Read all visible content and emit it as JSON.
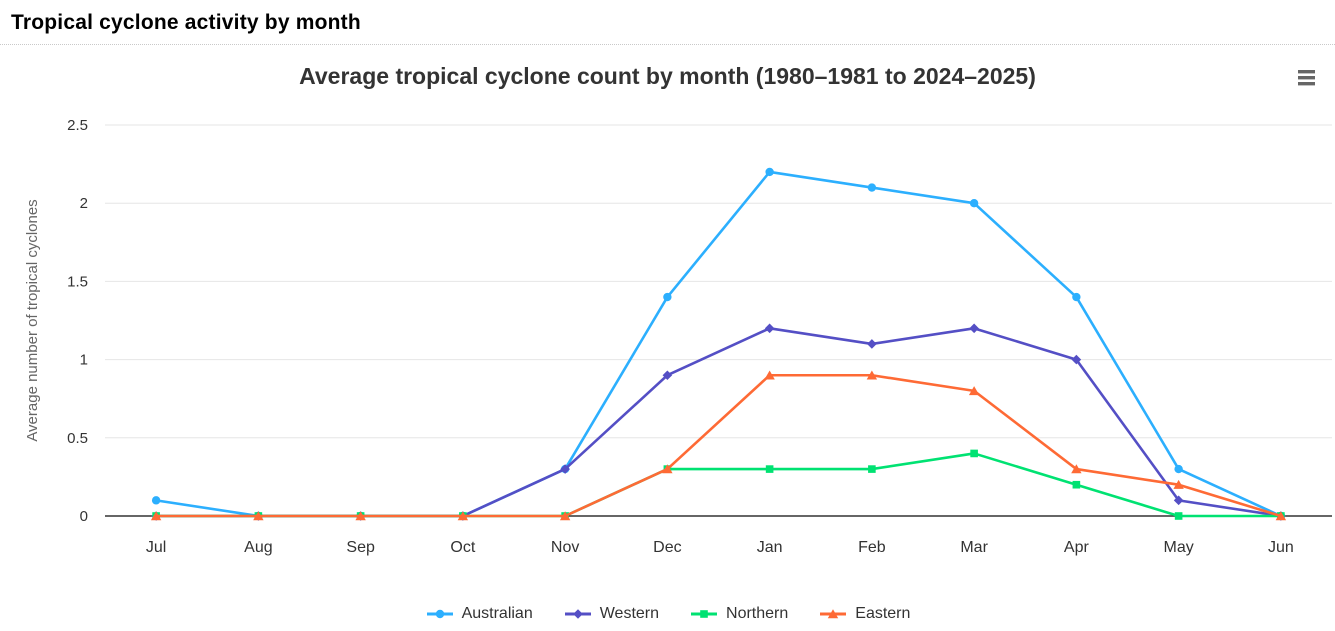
{
  "page": {
    "title": "Tropical cyclone activity by month"
  },
  "toolbar": {
    "context_menu_icon": "hamburger-icon"
  },
  "chart_data": {
    "type": "line",
    "title": "Average tropical cyclone count by month (1980–1981 to 2024–2025)",
    "categories": [
      "Jul",
      "Aug",
      "Sep",
      "Oct",
      "Nov",
      "Dec",
      "Jan",
      "Feb",
      "Mar",
      "Apr",
      "May",
      "Jun"
    ],
    "xlabel": "",
    "ylabel": "Average number of tropical cyclones",
    "ylim": [
      0,
      2.5
    ],
    "ytick_interval": 0.5,
    "ytick_labels": [
      "0",
      "0.5",
      "1",
      "1.5",
      "2",
      "2.5"
    ],
    "grid": true,
    "legend_position": "bottom",
    "series": [
      {
        "name": "Australian",
        "color": "#2CAFFE",
        "marker": "circle",
        "values": [
          0.1,
          0,
          0,
          0,
          0.3,
          1.4,
          2.2,
          2.1,
          2.0,
          1.4,
          0.3,
          0
        ]
      },
      {
        "name": "Western",
        "color": "#544FC5",
        "marker": "diamond",
        "values": [
          0,
          0,
          0,
          0,
          0.3,
          0.9,
          1.2,
          1.1,
          1.2,
          1.0,
          0.1,
          0
        ]
      },
      {
        "name": "Northern",
        "color": "#00E272",
        "marker": "square",
        "values": [
          0,
          0,
          0,
          0,
          0,
          0.3,
          0.3,
          0.3,
          0.4,
          0.2,
          0,
          0
        ]
      },
      {
        "name": "Eastern",
        "color": "#FE6A35",
        "marker": "triangle",
        "values": [
          0,
          0,
          0,
          0,
          0,
          0.3,
          0.9,
          0.9,
          0.8,
          0.3,
          0.2,
          0
        ]
      }
    ],
    "colors": {
      "grid_line": "#E6E6E6",
      "axis_line": "#333333",
      "tick_label": "#333333",
      "axis_title": "#666666",
      "chart_title": "#333333",
      "legend_label": "#333333",
      "menu_icon": "#666666"
    }
  }
}
